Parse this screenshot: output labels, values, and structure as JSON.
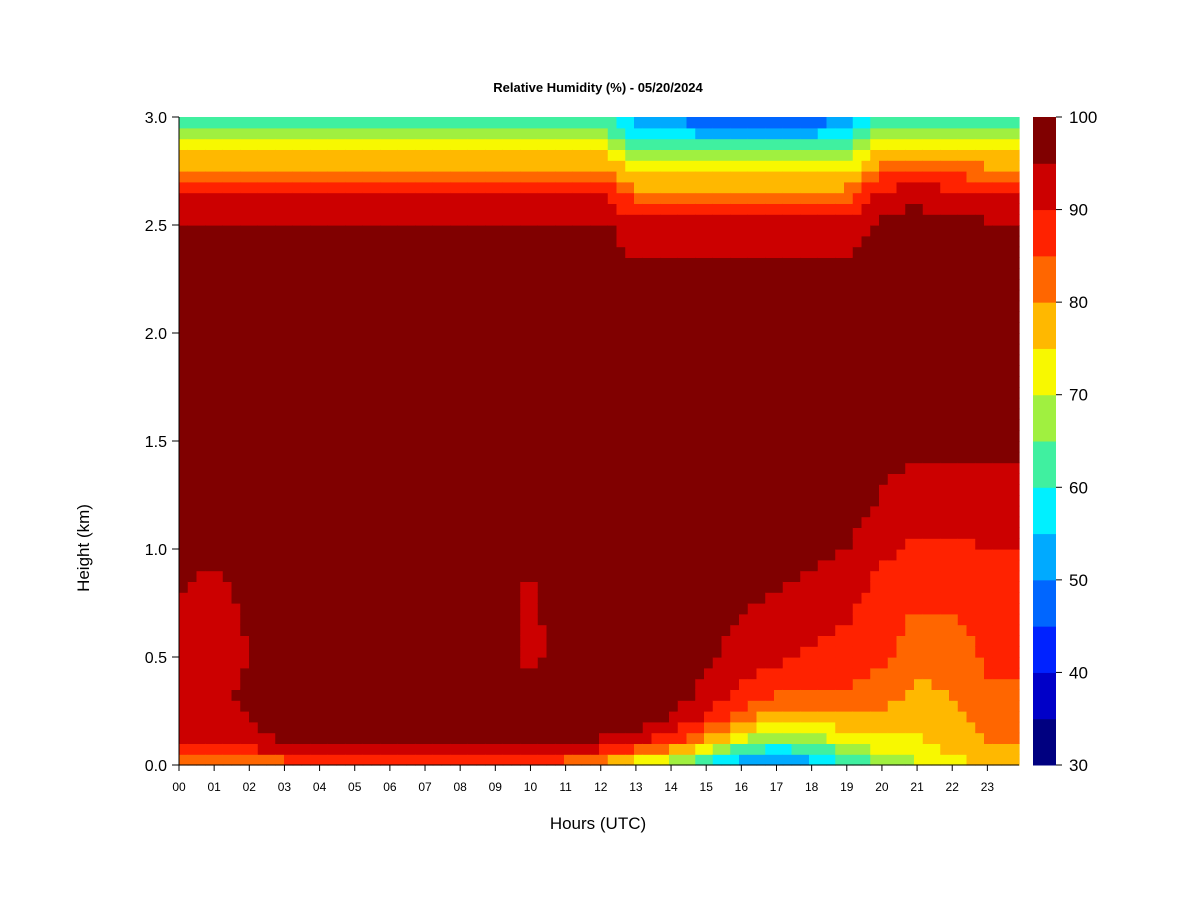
{
  "chart_data": {
    "type": "heatmap",
    "title": "Relative Humidity (%) - 05/20/2024",
    "xlabel": "Hours (UTC)",
    "ylabel": "Height (km)",
    "x_unit": "hours UTC",
    "y_unit": "km",
    "xlim": [
      0,
      23.9
    ],
    "ylim": [
      0.0,
      3.0
    ],
    "x_ticks": [
      "00",
      "01",
      "02",
      "03",
      "04",
      "05",
      "06",
      "07",
      "08",
      "09",
      "10",
      "11",
      "12",
      "13",
      "14",
      "15",
      "16",
      "17",
      "18",
      "19",
      "20",
      "21",
      "22",
      "23"
    ],
    "y_ticks": [
      "0.0",
      "0.5",
      "1.0",
      "1.5",
      "2.0",
      "2.5",
      "3.0"
    ],
    "colorbar": {
      "levels": [
        30,
        35,
        40,
        45,
        50,
        55,
        60,
        65,
        70,
        75,
        80,
        85,
        90,
        95,
        100
      ],
      "tick_labels": [
        "30",
        "40",
        "50",
        "60",
        "70",
        "80",
        "90",
        "100"
      ],
      "colors": [
        "#000080",
        "#0000c8",
        "#0022ff",
        "#0066ff",
        "#00aaff",
        "#00f0ff",
        "#40f0a0",
        "#a0f040",
        "#f8f800",
        "#ffb800",
        "#ff6600",
        "#ff2200",
        "#cc0000",
        "#800000"
      ]
    },
    "profile_hours": [
      0,
      1,
      2,
      3,
      4,
      5,
      6,
      7,
      8,
      9,
      10,
      11,
      12,
      13,
      14,
      15,
      16,
      17,
      18,
      19,
      20,
      21,
      22,
      23
    ],
    "profile_heights_km": [
      0.0,
      0.05,
      0.1,
      0.2,
      0.3,
      0.5,
      0.8,
      1.2,
      1.6,
      2.0,
      2.3,
      2.5,
      2.6,
      2.7,
      2.8,
      2.9,
      3.0
    ],
    "values": [
      [
        76,
        86,
        91,
        93,
        94,
        93,
        95,
        97,
        98,
        98,
        98,
        96,
        92,
        86,
        78,
        70,
        62
      ],
      [
        76,
        86,
        91,
        93,
        94,
        93,
        94,
        97,
        98,
        98,
        98,
        96,
        92,
        86,
        78,
        70,
        62
      ],
      [
        78,
        87,
        92,
        95,
        96,
        95,
        96,
        98,
        98,
        98,
        98,
        96,
        92,
        86,
        78,
        70,
        62
      ],
      [
        80,
        90,
        95,
        97,
        98,
        98,
        98,
        98,
        98,
        98,
        98,
        96,
        92,
        86,
        78,
        70,
        62
      ],
      [
        82,
        91,
        96,
        98,
        98,
        98,
        98,
        98,
        98,
        98,
        98,
        96,
        92,
        86,
        78,
        70,
        62
      ],
      [
        82,
        92,
        96,
        98,
        98,
        98,
        98,
        98,
        98,
        98,
        98,
        96,
        92,
        86,
        78,
        70,
        62
      ],
      [
        82,
        92,
        96,
        98,
        98,
        98,
        98,
        98,
        98,
        98,
        98,
        96,
        92,
        86,
        78,
        70,
        62
      ],
      [
        82,
        92,
        96,
        98,
        98,
        98,
        98,
        98,
        98,
        98,
        98,
        96,
        92,
        86,
        78,
        70,
        62
      ],
      [
        82,
        92,
        96,
        98,
        98,
        98,
        98,
        98,
        98,
        98,
        98,
        96,
        92,
        86,
        78,
        70,
        62
      ],
      [
        83,
        92,
        96,
        98,
        98,
        98,
        98,
        98,
        98,
        98,
        98,
        96,
        92,
        86,
        78,
        70,
        62
      ],
      [
        82,
        92,
        96,
        98,
        98,
        93,
        94,
        98,
        98,
        98,
        98,
        96,
        92,
        86,
        78,
        70,
        62
      ],
      [
        80,
        90,
        95,
        98,
        98,
        98,
        98,
        98,
        98,
        98,
        98,
        96,
        92,
        86,
        78,
        70,
        62
      ],
      [
        76,
        86,
        94,
        98,
        98,
        98,
        98,
        98,
        98,
        98,
        98,
        96,
        92,
        86,
        78,
        70,
        62
      ],
      [
        70,
        80,
        90,
        97,
        98,
        98,
        98,
        98,
        98,
        98,
        96,
        92,
        86,
        78,
        70,
        60,
        52
      ],
      [
        64,
        74,
        86,
        94,
        97,
        98,
        98,
        98,
        98,
        98,
        96,
        92,
        86,
        78,
        70,
        60,
        52
      ],
      [
        58,
        66,
        78,
        88,
        93,
        96,
        98,
        98,
        98,
        98,
        96,
        92,
        86,
        78,
        70,
        58,
        42
      ],
      [
        52,
        58,
        68,
        80,
        88,
        93,
        96,
        98,
        98,
        98,
        96,
        92,
        86,
        78,
        70,
        58,
        42
      ],
      [
        47,
        54,
        64,
        75,
        84,
        91,
        95,
        98,
        98,
        98,
        96,
        92,
        86,
        78,
        70,
        58,
        42
      ],
      [
        52,
        58,
        66,
        76,
        83,
        89,
        94,
        98,
        98,
        98,
        96,
        92,
        86,
        78,
        70,
        58,
        42
      ],
      [
        60,
        64,
        70,
        78,
        84,
        88,
        92,
        98,
        98,
        98,
        96,
        92,
        86,
        78,
        70,
        60,
        52
      ],
      [
        64,
        70,
        74,
        78,
        82,
        86,
        88,
        94,
        98,
        98,
        98,
        96,
        93,
        88,
        80,
        70,
        62
      ],
      [
        68,
        72,
        74,
        76,
        78,
        82,
        86,
        92,
        98,
        98,
        98,
        97,
        95,
        90,
        80,
        70,
        62
      ],
      [
        72,
        75,
        77,
        78,
        80,
        82,
        86,
        92,
        98,
        98,
        98,
        96,
        93,
        88,
        80,
        70,
        62
      ],
      [
        75,
        78,
        80,
        82,
        84,
        86,
        88,
        92,
        98,
        98,
        98,
        96,
        92,
        86,
        78,
        70,
        62
      ]
    ]
  }
}
